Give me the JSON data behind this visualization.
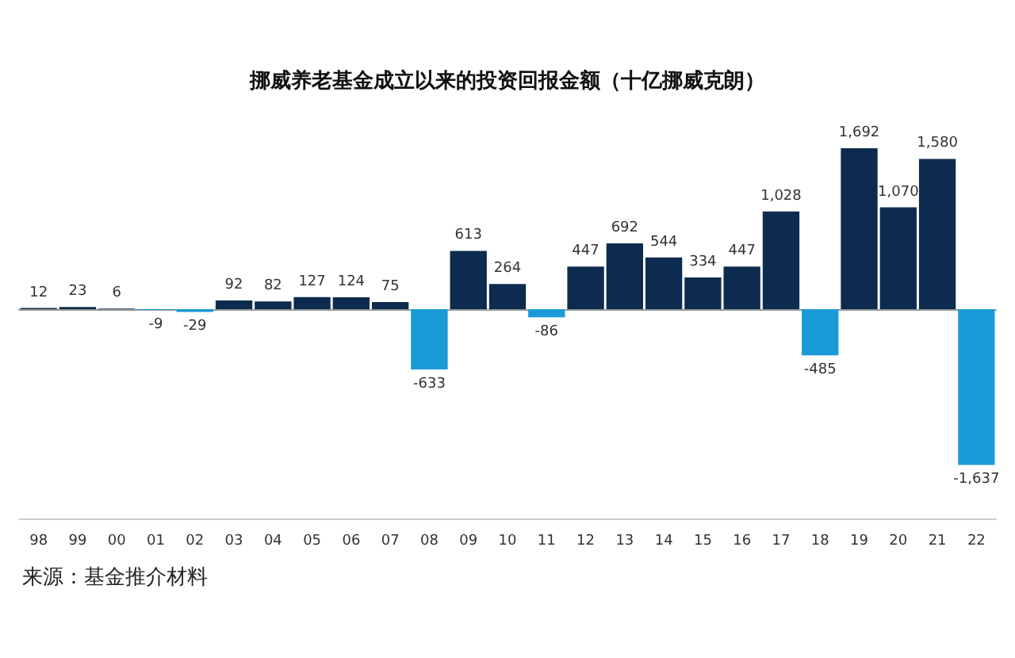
{
  "chart_data": {
    "type": "bar",
    "title": "挪威养老基金成立以来的投资回报金额（十亿挪威克朗）",
    "categories": [
      "98",
      "99",
      "00",
      "01",
      "02",
      "03",
      "04",
      "05",
      "06",
      "07",
      "08",
      "09",
      "10",
      "11",
      "12",
      "13",
      "14",
      "15",
      "16",
      "17",
      "18",
      "19",
      "20",
      "21",
      "22"
    ],
    "values": [
      12,
      23,
      6,
      -9,
      -29,
      92,
      82,
      127,
      124,
      75,
      -633,
      613,
      264,
      -86,
      447,
      692,
      544,
      334,
      447,
      1028,
      -485,
      1692,
      1070,
      1580,
      -1637
    ],
    "value_labels": [
      "12",
      "23",
      "6",
      "-9",
      "-29",
      "92",
      "82",
      "127",
      "124",
      "75",
      "-633",
      "613",
      "264",
      "-86",
      "447",
      "692",
      "544",
      "334",
      "447",
      "1,028",
      "-485",
      "1,692",
      "1,070",
      "1,580",
      "-1,637"
    ],
    "colors": [
      "#0c2b4e",
      "#0c2b4e",
      "#0c2b4e",
      "#1a9ad6",
      "#1a9ad6",
      "#0c2b4e",
      "#0c2b4e",
      "#0c2b4e",
      "#0c2b4e",
      "#0c2b4e",
      "#1a9ad6",
      "#0c2b4e",
      "#0c2b4e",
      "#1a9ad6",
      "#0c2b4e",
      "#0c2b4e",
      "#0c2b4e",
      "#0c2b4e",
      "#0c2b4e",
      "#0c2b4e",
      "#1a9ad6",
      "#0c2b4e",
      "#0c2b4e",
      "#0c2b4e",
      "#1a9ad6"
    ],
    "annotations": [
      "来源：基金推介材料"
    ]
  }
}
